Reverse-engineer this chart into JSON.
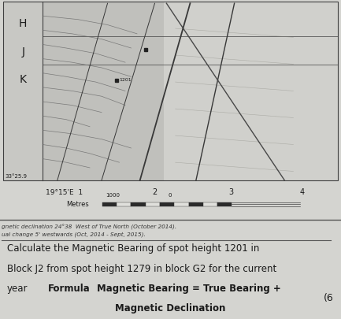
{
  "bg_color": "#d4d4d0",
  "map_bg_left": "#b8b8b4",
  "map_bg_right": "#c8c8c4",
  "row_labels": [
    "H",
    "J",
    "K"
  ],
  "coord_bottom_left": "33°25.9",
  "coord_bottom_label": "19°15'E  1",
  "scale_label": "Metres",
  "scale_1000": "1000",
  "scale_0": "0",
  "small_text_line1": "gnetic declination 24°38  West of True North (October 2014).",
  "small_text_line2": "ual change 5' westwards (Oct, 2014 - Sept, 2015).",
  "question_line1": "Calculate the Magnetic Bearing of spot height 1201 in",
  "question_line2": "Block J2 from spot height 1279 in block G2 for the current",
  "question_year": "year",
  "question_formula_bold": "Formula   Magnetic Bearing = True Bearing +",
  "question_line4_bold": "Magnetic Declination",
  "bracket_number": "(6",
  "map_spot_label": "1201",
  "line_color": "#404040",
  "text_color": "#1a1a1a"
}
